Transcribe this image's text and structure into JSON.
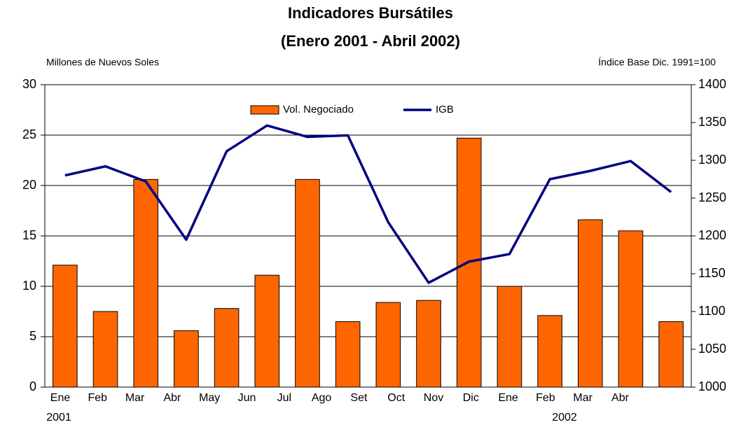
{
  "chart_data": {
    "type": "bar-line",
    "title": [
      "Indicadores Bursátiles",
      "(Enero 2001 - Abril 2002)"
    ],
    "y_label": "Millones de Nuevos Soles",
    "y2_label": "Índice Base Dic. 1991=100",
    "categories": [
      "Ene",
      "Feb",
      "Mar",
      "Abr",
      "May",
      "Jun",
      "Jul",
      "Ago",
      "Set",
      "Oct",
      "Nov",
      "Dic",
      "Ene",
      "Feb",
      "Mar",
      "Abr"
    ],
    "year_labels": [
      "2001",
      "2002"
    ],
    "series": [
      {
        "name": "Vol. Negociado",
        "color": "#ff6600",
        "type": "bar",
        "values": [
          12.1,
          7.5,
          20.6,
          5.6,
          7.8,
          11.1,
          20.6,
          6.5,
          8.4,
          8.6,
          24.7,
          10.0,
          7.1,
          16.6,
          15.5,
          6.5
        ]
      },
      {
        "name": "IGB",
        "color": "#000080",
        "type": "line",
        "axis": "y2",
        "values": [
          1280,
          1292,
          1272,
          1195,
          1312,
          1346,
          1331,
          1333,
          1218,
          1138,
          1166,
          1176,
          1275,
          1286,
          1299,
          1258
        ]
      }
    ],
    "ylim": [
      0,
      30
    ],
    "yticks": [
      0,
      5,
      10,
      15,
      20,
      25,
      30
    ],
    "y2lim": [
      1000,
      1400
    ],
    "y2ticks": [
      1000,
      1050,
      1100,
      1150,
      1200,
      1250,
      1300,
      1350,
      1400
    ],
    "grid": true,
    "legend": "top"
  }
}
